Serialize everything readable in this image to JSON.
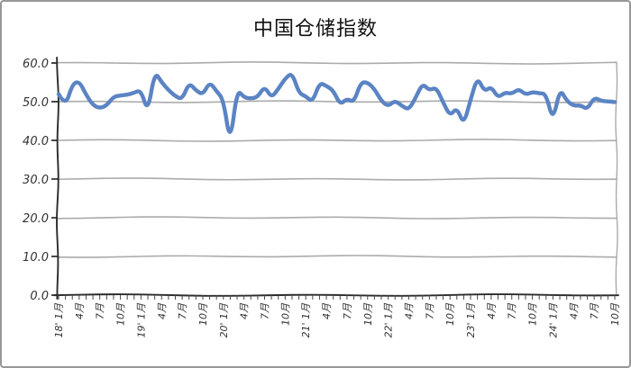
{
  "chart_data": {
    "type": "line",
    "title": "中国仓储指数",
    "series_name": "中国仓储指数",
    "style": "hand-drawn-xkcd",
    "grid": "horizontal",
    "legend": "none",
    "line_color": "#5b84c4",
    "axis_color": "#2b2b2b",
    "grid_color": "#ababab",
    "tick_text_color": "#333333",
    "ylim": [
      0,
      60
    ],
    "y_tick_step": 10,
    "y_tick_labels": [
      "0.0",
      "10.0",
      "20.0",
      "30.0",
      "40.0",
      "50.0",
      "60.0"
    ],
    "x_unit": "month",
    "x_range": "2018-01 to 2024-10",
    "x_tick_every": 3,
    "x_tick_labels": [
      "18' 1月",
      "4月",
      "7月",
      "10月",
      "19' 1月",
      "4月",
      "7月",
      "10月",
      "20' 1月",
      "4月",
      "7月",
      "10月",
      "21' 1月",
      "4月",
      "7月",
      "10月",
      "22' 1月",
      "4月",
      "7月",
      "10月",
      "23' 1月",
      "4月",
      "7月",
      "10月",
      "24' 1月",
      "4月",
      "7月",
      "10月"
    ],
    "values": [
      52.0,
      48.7,
      54.5,
      55.3,
      51.8,
      49.1,
      48.3,
      49.0,
      51.3,
      51.6,
      51.8,
      52.3,
      53.0,
      47.2,
      57.8,
      55.0,
      53.0,
      51.4,
      50.6,
      54.9,
      52.9,
      51.8,
      55.1,
      52.7,
      50.6,
      39.0,
      53.2,
      51.1,
      50.8,
      51.2,
      54.0,
      51.0,
      53.3,
      56.0,
      57.5,
      52.2,
      51.4,
      49.9,
      54.9,
      54.1,
      52.9,
      49.2,
      50.8,
      49.8,
      55.0,
      55.0,
      53.3,
      50.2,
      48.8,
      50.3,
      48.9,
      47.9,
      51.0,
      54.7,
      52.9,
      53.7,
      49.8,
      46.3,
      48.5,
      44.0,
      50.5,
      56.4,
      52.6,
      53.9,
      51.0,
      52.4,
      52.0,
      53.3,
      51.8,
      52.5,
      52.2,
      52.0,
      44.9,
      53.4,
      50.2,
      48.9,
      49.1,
      48.0,
      51.1,
      50.2,
      50.1,
      49.9
    ]
  }
}
